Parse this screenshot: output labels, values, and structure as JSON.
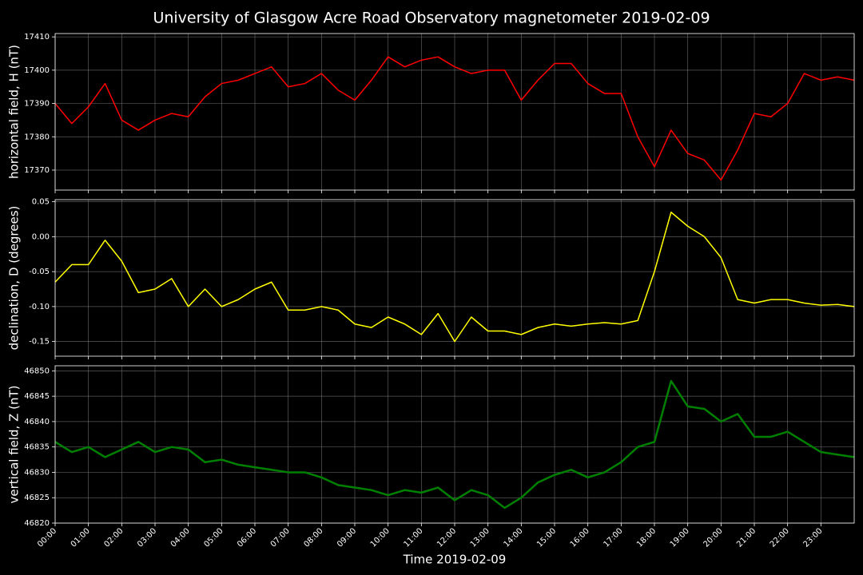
{
  "title": "University of Glasgow Acre Road Observatory magnetometer 2019-02-09",
  "xlabel": "Time 2019-02-09",
  "xlim": [
    0,
    24
  ],
  "xticks": [
    {
      "value": 0,
      "label": "00:00"
    },
    {
      "value": 1,
      "label": "01:00"
    },
    {
      "value": 2,
      "label": "02:00"
    },
    {
      "value": 3,
      "label": "03:00"
    },
    {
      "value": 4,
      "label": "04:00"
    },
    {
      "value": 5,
      "label": "05:00"
    },
    {
      "value": 6,
      "label": "06:00"
    },
    {
      "value": 7,
      "label": "07:00"
    },
    {
      "value": 8,
      "label": "08:00"
    },
    {
      "value": 9,
      "label": "09:00"
    },
    {
      "value": 10,
      "label": "10:00"
    },
    {
      "value": 11,
      "label": "11:00"
    },
    {
      "value": 12,
      "label": "12:00"
    },
    {
      "value": 13,
      "label": "13:00"
    },
    {
      "value": 14,
      "label": "14:00"
    },
    {
      "value": 15,
      "label": "15:00"
    },
    {
      "value": 16,
      "label": "16:00"
    },
    {
      "value": 17,
      "label": "17:00"
    },
    {
      "value": 18,
      "label": "18:00"
    },
    {
      "value": 19,
      "label": "19:00"
    },
    {
      "value": 20,
      "label": "20:00"
    },
    {
      "value": 21,
      "label": "21:00"
    },
    {
      "value": 22,
      "label": "22:00"
    },
    {
      "value": 23,
      "label": "23:00"
    }
  ],
  "chart_data": [
    {
      "type": "line",
      "ylabel": "horizontal field, H (nT)",
      "x": [
        0,
        0.5,
        1,
        1.5,
        2,
        2.5,
        3,
        3.5,
        4,
        4.5,
        5,
        5.5,
        6,
        6.5,
        7,
        7.5,
        8,
        8.5,
        9,
        9.5,
        10,
        10.5,
        11,
        11.5,
        12,
        12.5,
        13,
        13.5,
        14,
        14.5,
        15,
        15.5,
        16,
        16.5,
        17,
        17.5,
        18,
        18.5,
        19,
        19.5,
        20,
        20.5,
        21,
        21.5,
        22,
        22.5,
        23,
        23.5,
        24
      ],
      "series": [
        {
          "color": "#ff0000",
          "values": [
            17390,
            17384,
            17389,
            17396,
            17385,
            17382,
            17385,
            17387,
            17386,
            17392,
            17396,
            17397,
            17399,
            17401,
            17395,
            17396,
            17399,
            17394,
            17391,
            17397,
            17404,
            17401,
            17403,
            17404,
            17401,
            17399,
            17400,
            17400,
            17391,
            17397,
            17402,
            17402,
            17396,
            17393,
            17393,
            17380,
            17371,
            17382,
            17375,
            17373,
            17367,
            17376,
            17387,
            17386,
            17390,
            17399,
            17397,
            17398,
            17397
          ]
        }
      ],
      "ylim": [
        17364,
        17411
      ],
      "yticks": [
        17370,
        17380,
        17390,
        17400,
        17410
      ],
      "grid": true
    },
    {
      "type": "line",
      "ylabel": "declination, D (degrees)",
      "x": [
        0,
        0.5,
        1,
        1.5,
        2,
        2.5,
        3,
        3.5,
        4,
        4.5,
        5,
        5.5,
        6,
        6.5,
        7,
        7.5,
        8,
        8.5,
        9,
        9.5,
        10,
        10.5,
        11,
        11.5,
        12,
        12.5,
        13,
        13.5,
        14,
        14.5,
        15,
        15.5,
        16,
        16.5,
        17,
        17.5,
        18,
        18.5,
        19,
        19.5,
        20,
        20.5,
        21,
        21.5,
        22,
        22.5,
        23,
        23.5,
        24
      ],
      "series": [
        {
          "color": "#ffff00",
          "values": [
            -0.065,
            -0.04,
            -0.04,
            -0.005,
            -0.035,
            -0.08,
            -0.075,
            -0.06,
            -0.1,
            -0.075,
            -0.1,
            -0.09,
            -0.075,
            -0.065,
            -0.105,
            -0.105,
            -0.1,
            -0.105,
            -0.125,
            -0.13,
            -0.115,
            -0.125,
            -0.14,
            -0.11,
            -0.15,
            -0.115,
            -0.135,
            -0.135,
            -0.14,
            -0.13,
            -0.125,
            -0.128,
            -0.125,
            -0.123,
            -0.125,
            -0.12,
            -0.05,
            0.035,
            0.015,
            0.0,
            -0.03,
            -0.09,
            -0.095,
            -0.09,
            -0.09,
            -0.095,
            -0.098,
            -0.097,
            -0.1
          ]
        }
      ],
      "ylim": [
        -0.171,
        0.053
      ],
      "yticks": [
        {
          "value": -0.15,
          "label": "-0.15"
        },
        {
          "value": -0.1,
          "label": "-0.10"
        },
        {
          "value": -0.05,
          "label": "-0.05"
        },
        {
          "value": 0,
          "label": "0.00"
        },
        {
          "value": 0.05,
          "label": "0.05"
        }
      ],
      "grid": true
    },
    {
      "type": "line",
      "ylabel": "vertical field, Z (nT)",
      "x": [
        0,
        0.5,
        1,
        1.5,
        2,
        2.5,
        3,
        3.5,
        4,
        4.5,
        5,
        5.5,
        6,
        6.5,
        7,
        7.5,
        8,
        8.5,
        9,
        9.5,
        10,
        10.5,
        11,
        11.5,
        12,
        12.5,
        13,
        13.5,
        14,
        14.5,
        15,
        15.5,
        16,
        16.5,
        17,
        17.5,
        18,
        18.5,
        19,
        19.5,
        20,
        20.5,
        21,
        21.5,
        22,
        22.5,
        23,
        23.5,
        24
      ],
      "series": [
        {
          "color": "#008000",
          "values": [
            46836,
            46834,
            46835,
            46833,
            46834.5,
            46836,
            46834,
            46835,
            46834.5,
            46832,
            46832.5,
            46831.5,
            46831,
            46830.5,
            46830,
            46830,
            46829,
            46827.5,
            46827,
            46826.5,
            46825.5,
            46826.5,
            46826,
            46827,
            46824.5,
            46826.5,
            46825.5,
            46823,
            46825,
            46828,
            46829.5,
            46830.5,
            46829,
            46830,
            46832,
            46835,
            46836,
            46848,
            46843,
            46842.5,
            46840,
            46841.5,
            46837,
            46837,
            46838,
            46836,
            46834,
            46833.5,
            46833
          ]
        }
      ],
      "ylim": [
        46820,
        46851
      ],
      "yticks": [
        46820,
        46825,
        46830,
        46835,
        46840,
        46845,
        46850
      ],
      "grid": true
    }
  ]
}
